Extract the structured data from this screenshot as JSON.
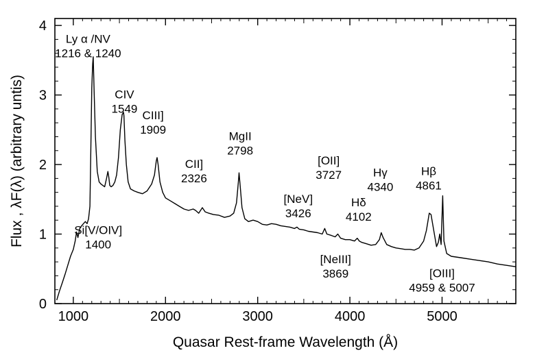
{
  "chart_data": {
    "type": "line",
    "title": "",
    "xlabel": "Quasar Rest-frame Wavelength (Å)",
    "ylabel": "Flux ,  λF(λ)   (arbitrary untis)",
    "xlim": [
      800,
      5800
    ],
    "ylim": [
      0,
      4.1
    ],
    "x_ticks": [
      1000,
      2000,
      3000,
      4000,
      5000
    ],
    "y_ticks": [
      0,
      1,
      2,
      3,
      4
    ],
    "grid": false,
    "legend": "none",
    "series": [
      {
        "color": "#000000",
        "x": [
          820,
          850,
          880,
          910,
          940,
          970,
          1000,
          1020,
          1035,
          1050,
          1070,
          1090,
          1110,
          1130,
          1150,
          1165,
          1180,
          1190,
          1200,
          1210,
          1216,
          1225,
          1240,
          1260,
          1280,
          1300,
          1320,
          1340,
          1360,
          1375,
          1385,
          1395,
          1410,
          1430,
          1450,
          1470,
          1490,
          1510,
          1530,
          1545,
          1549,
          1560,
          1575,
          1595,
          1620,
          1660,
          1700,
          1750,
          1800,
          1850,
          1880,
          1900,
          1909,
          1920,
          1940,
          1970,
          2000,
          2050,
          2100,
          2150,
          2200,
          2250,
          2300,
          2326,
          2360,
          2400,
          2430,
          2470,
          2520,
          2580,
          2640,
          2700,
          2740,
          2770,
          2790,
          2798,
          2810,
          2830,
          2860,
          2900,
          2950,
          3000,
          3050,
          3100,
          3150,
          3200,
          3250,
          3300,
          3350,
          3400,
          3426,
          3450,
          3500,
          3550,
          3600,
          3650,
          3700,
          3727,
          3750,
          3800,
          3840,
          3869,
          3900,
          3950,
          4000,
          4050,
          4080,
          4102,
          4130,
          4180,
          4230,
          4280,
          4320,
          4340,
          4360,
          4400,
          4450,
          4500,
          4550,
          4600,
          4650,
          4700,
          4750,
          4800,
          4830,
          4861,
          4880,
          4910,
          4940,
          4959,
          4975,
          4990,
          5007,
          5020,
          5050,
          5100,
          5200,
          5300,
          5400,
          5500,
          5600,
          5700,
          5800
        ],
        "values": [
          0.05,
          0.18,
          0.3,
          0.42,
          0.55,
          0.68,
          0.78,
          0.9,
          1.03,
          0.95,
          1.08,
          1.12,
          1.15,
          1.18,
          1.15,
          1.22,
          1.4,
          2.2,
          3.1,
          3.45,
          3.55,
          3.1,
          2.4,
          1.9,
          1.75,
          1.72,
          1.7,
          1.68,
          1.8,
          1.9,
          1.82,
          1.7,
          1.68,
          1.7,
          1.75,
          1.85,
          2.1,
          2.5,
          2.72,
          2.75,
          2.7,
          2.35,
          2.0,
          1.75,
          1.65,
          1.62,
          1.6,
          1.58,
          1.62,
          1.72,
          1.85,
          2.05,
          2.1,
          2.0,
          1.75,
          1.6,
          1.52,
          1.48,
          1.44,
          1.4,
          1.36,
          1.34,
          1.36,
          1.34,
          1.3,
          1.38,
          1.32,
          1.3,
          1.28,
          1.27,
          1.24,
          1.26,
          1.3,
          1.45,
          1.75,
          1.88,
          1.7,
          1.38,
          1.22,
          1.18,
          1.2,
          1.18,
          1.14,
          1.13,
          1.15,
          1.14,
          1.12,
          1.11,
          1.1,
          1.08,
          1.1,
          1.07,
          1.06,
          1.04,
          1.03,
          1.02,
          1.0,
          1.08,
          1.0,
          0.98,
          0.96,
          1.0,
          0.94,
          0.92,
          0.92,
          0.9,
          0.94,
          0.9,
          0.88,
          0.86,
          0.84,
          0.85,
          0.92,
          1.02,
          0.95,
          0.85,
          0.82,
          0.8,
          0.79,
          0.78,
          0.78,
          0.77,
          0.8,
          0.9,
          1.05,
          1.3,
          1.28,
          1.05,
          0.82,
          0.88,
          1.0,
          0.85,
          1.55,
          0.9,
          0.72,
          0.68,
          0.66,
          0.64,
          0.62,
          0.6,
          0.57,
          0.55,
          0.53
        ]
      }
    ],
    "annotations": [
      {
        "text": [
          "Ly α /NV",
          "1216 & 1240"
        ],
        "x": 1160,
        "y": 3.75
      },
      {
        "text": [
          "CIV",
          "1549"
        ],
        "x": 1555,
        "y": 2.95
      },
      {
        "text": [
          "CIII]",
          "1909"
        ],
        "x": 1865,
        "y": 2.65
      },
      {
        "text": [
          "CII]",
          "2326"
        ],
        "x": 2310,
        "y": 1.95
      },
      {
        "text": [
          "MgII",
          "2798"
        ],
        "x": 2810,
        "y": 2.35
      },
      {
        "text": [
          "[OII]",
          "3727"
        ],
        "x": 3770,
        "y": 2.0
      },
      {
        "text": [
          "Hγ",
          "4340"
        ],
        "x": 4330,
        "y": 1.83
      },
      {
        "text": [
          "Hβ",
          "4861"
        ],
        "x": 4855,
        "y": 1.85
      },
      {
        "text": [
          "[NeV]",
          "3426"
        ],
        "x": 3440,
        "y": 1.45
      },
      {
        "text": [
          "Hδ",
          "4102"
        ],
        "x": 4095,
        "y": 1.4
      },
      {
        "text": [
          "Si[V/OIV]",
          "1400"
        ],
        "x": 1270,
        "y": 1.0
      },
      {
        "text": [
          "[NeIII]",
          "3869"
        ],
        "x": 3845,
        "y": 0.58
      },
      {
        "text": [
          "[OIII]",
          "4959 & 5007"
        ],
        "x": 5000,
        "y": 0.38
      }
    ]
  }
}
